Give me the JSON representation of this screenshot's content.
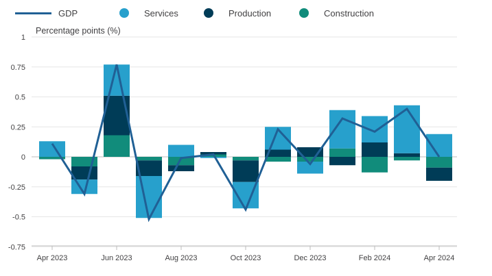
{
  "legend": {
    "gdp": "GDP",
    "services": "Services",
    "production": "Production",
    "construction": "Construction"
  },
  "colors": {
    "gdp": "#206095",
    "services": "#27a0cc",
    "production": "#003c57",
    "construction": "#118c7b",
    "grid": "#e6e6e6",
    "axis": "#bebebe"
  },
  "chart_data": {
    "type": "bar",
    "stacked": true,
    "title": "",
    "ylabel": "Percentage points (%)",
    "xlabel": "",
    "ylim": [
      -0.75,
      1
    ],
    "yticks": [
      1,
      0.75,
      0.5,
      0.25,
      0,
      -0.25,
      -0.5,
      -0.75
    ],
    "ytick_labels": [
      "1",
      "0.75",
      "0.5",
      "0.25",
      "0",
      "-0.25",
      "-0.5",
      "-0.75"
    ],
    "categories": [
      "Apr 2023",
      "May 2023",
      "Jun 2023",
      "Jul 2023",
      "Aug 2023",
      "Sep 2023",
      "Oct 2023",
      "Nov 2023",
      "Dec 2023",
      "Jan 2024",
      "Feb 2024",
      "Mar 2024",
      "Apr 2024"
    ],
    "xtick_labels": [
      {
        "index": 0,
        "label": "Apr 2023"
      },
      {
        "index": 2,
        "label": "Jun 2023"
      },
      {
        "index": 4,
        "label": "Aug 2023"
      },
      {
        "index": 6,
        "label": "Oct 2023"
      },
      {
        "index": 8,
        "label": "Dec 2023"
      },
      {
        "index": 10,
        "label": "Feb 2024"
      },
      {
        "index": 12,
        "label": "Apr 2024"
      }
    ],
    "series": [
      {
        "name": "Construction",
        "kind": "bar",
        "values": [
          -0.02,
          -0.08,
          0.18,
          -0.03,
          -0.07,
          0.02,
          -0.03,
          -0.04,
          -0.04,
          0.07,
          -0.13,
          -0.03,
          -0.09
        ]
      },
      {
        "name": "Production",
        "kind": "bar",
        "values": [
          0.0,
          -0.11,
          0.33,
          -0.13,
          -0.05,
          0.02,
          -0.18,
          0.06,
          0.08,
          -0.07,
          0.12,
          0.03,
          -0.11
        ]
      },
      {
        "name": "Services",
        "kind": "bar",
        "values": [
          0.13,
          -0.12,
          0.26,
          -0.35,
          0.1,
          -0.01,
          -0.22,
          0.19,
          -0.1,
          0.32,
          0.22,
          0.4,
          0.19
        ]
      },
      {
        "name": "GDP",
        "kind": "line",
        "values": [
          0.11,
          -0.31,
          0.77,
          -0.52,
          -0.01,
          0.02,
          -0.44,
          0.23,
          -0.06,
          0.32,
          0.21,
          0.4,
          0.0
        ]
      }
    ]
  }
}
